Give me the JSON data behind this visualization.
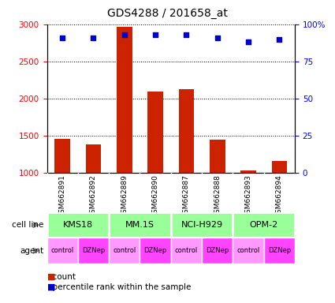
{
  "title": "GDS4288 / 201658_at",
  "samples": [
    "GSM662891",
    "GSM662892",
    "GSM662889",
    "GSM662890",
    "GSM662887",
    "GSM662888",
    "GSM662893",
    "GSM662894"
  ],
  "counts": [
    1460,
    1380,
    2970,
    2090,
    2130,
    1450,
    1030,
    1160
  ],
  "percentile_ranks": [
    91,
    91,
    93,
    93,
    93,
    91,
    88,
    90
  ],
  "ylim_left": [
    1000,
    3000
  ],
  "ylim_right": [
    0,
    100
  ],
  "yticks_left": [
    1000,
    1500,
    2000,
    2500,
    3000
  ],
  "yticks_right": [
    0,
    25,
    50,
    75,
    100
  ],
  "bar_color": "#cc2200",
  "dot_color": "#0000cc",
  "cell_lines": [
    "KMS18",
    "MM.1S",
    "NCI-H929",
    "OPM-2"
  ],
  "cell_line_color": "#99ff99",
  "cell_line_spans": [
    [
      0,
      2
    ],
    [
      2,
      4
    ],
    [
      4,
      6
    ],
    [
      6,
      8
    ]
  ],
  "agent_labels": [
    "control",
    "DZNep",
    "control",
    "DZNep",
    "control",
    "DZNep",
    "control",
    "DZNep"
  ],
  "agent_color_control": "#ff99ff",
  "agent_color_dznep": "#ff44ff",
  "sample_box_color": "#cccccc",
  "background_color": "#ffffff",
  "legend_count_color": "#cc2200",
  "legend_rank_color": "#0000cc"
}
